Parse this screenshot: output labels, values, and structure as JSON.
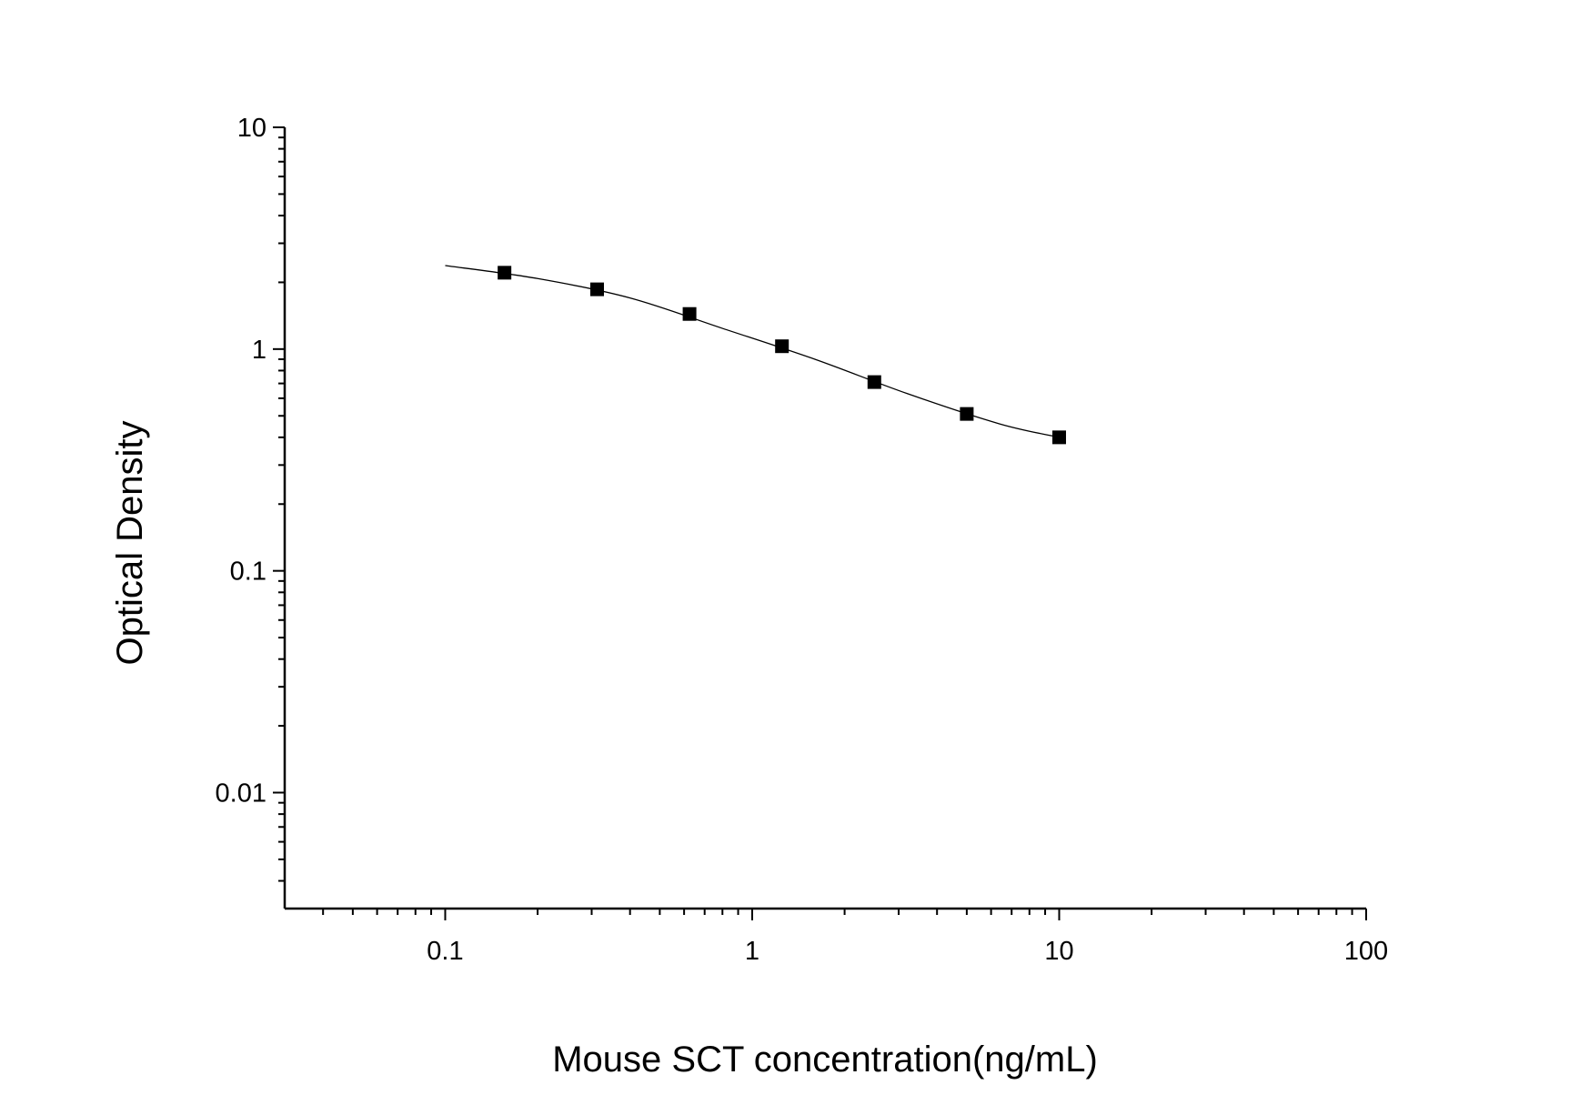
{
  "chart_data": {
    "type": "scatter",
    "x_label": "Mouse SCT concentration(ng/mL)",
    "y_label": "Optical Density",
    "x": [
      0.156,
      0.3125,
      0.625,
      1.25,
      2.5,
      5,
      10
    ],
    "values": [
      2.21,
      1.86,
      1.44,
      1.03,
      0.71,
      0.51,
      0.4
    ],
    "color": "#000000",
    "fit": {
      "x": [
        0.1,
        0.2,
        0.4,
        0.8,
        1.6,
        3.2,
        6.4,
        10
      ],
      "values": [
        2.38,
        2.08,
        1.7,
        1.24,
        0.9,
        0.63,
        0.46,
        0.4
      ]
    },
    "xlim": [
      0.03,
      100
    ],
    "ylim": [
      0.003,
      10
    ],
    "xticks": [
      0.1,
      1,
      10,
      100
    ],
    "yticks": [
      0.01,
      0.1,
      1,
      10
    ],
    "xminorticks": [
      0.04,
      0.05,
      0.06,
      0.07,
      0.08,
      0.09,
      0.2,
      0.3,
      0.4,
      0.5,
      0.6,
      0.7,
      0.8,
      0.9,
      2,
      3,
      4,
      5,
      6,
      7,
      8,
      9,
      20,
      30,
      40,
      50,
      60,
      70,
      80,
      90
    ],
    "yminorticks": [
      0.004,
      0.005,
      0.006,
      0.007,
      0.008,
      0.009,
      0.02,
      0.03,
      0.04,
      0.05,
      0.06,
      0.07,
      0.08,
      0.09,
      0.2,
      0.3,
      0.4,
      0.5,
      0.6,
      0.7,
      0.8,
      0.9,
      2,
      3,
      4,
      5,
      6,
      7,
      8,
      9
    ],
    "xscale": "log",
    "yscale": "log"
  }
}
